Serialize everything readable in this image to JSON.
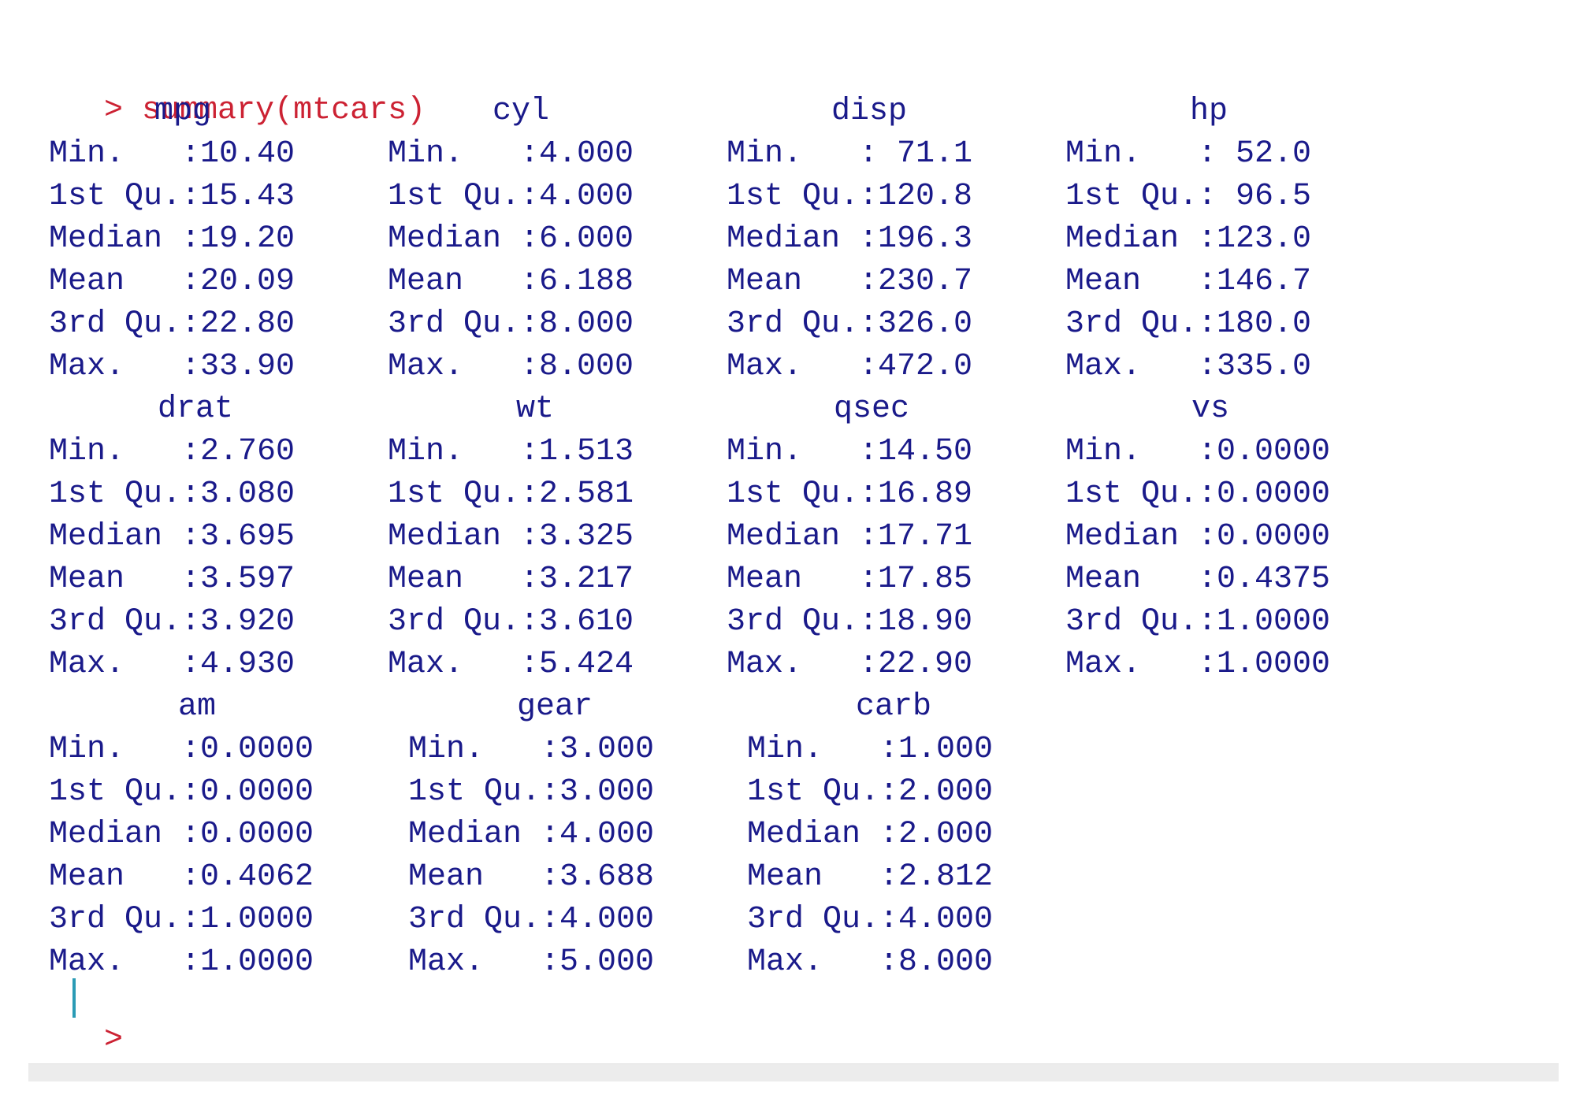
{
  "console": {
    "prompt": ">",
    "command": "summary(mtcars)"
  },
  "groups": [
    {
      "columns": [
        {
          "name": "mpg",
          "rows": [
            "Min.   :10.40",
            "1st Qu.:15.43",
            "Median :19.20",
            "Mean   :20.09",
            "3rd Qu.:22.80",
            "Max.   :33.90"
          ]
        },
        {
          "name": "cyl",
          "rows": [
            "Min.   :4.000",
            "1st Qu.:4.000",
            "Median :6.000",
            "Mean   :6.188",
            "3rd Qu.:8.000",
            "Max.   :8.000"
          ]
        },
        {
          "name": "disp",
          "rows": [
            "Min.   : 71.1",
            "1st Qu.:120.8",
            "Median :196.3",
            "Mean   :230.7",
            "3rd Qu.:326.0",
            "Max.   :472.0"
          ]
        },
        {
          "name": "hp",
          "rows": [
            "Min.   : 52.0",
            "1st Qu.: 96.5",
            "Median :123.0",
            "Mean   :146.7",
            "3rd Qu.:180.0",
            "Max.   :335.0"
          ]
        }
      ]
    },
    {
      "columns": [
        {
          "name": "drat",
          "rows": [
            "Min.   :2.760",
            "1st Qu.:3.080",
            "Median :3.695",
            "Mean   :3.597",
            "3rd Qu.:3.920",
            "Max.   :4.930"
          ]
        },
        {
          "name": "wt",
          "rows": [
            "Min.   :1.513",
            "1st Qu.:2.581",
            "Median :3.325",
            "Mean   :3.217",
            "3rd Qu.:3.610",
            "Max.   :5.424"
          ]
        },
        {
          "name": "qsec",
          "rows": [
            "Min.   :14.50",
            "1st Qu.:16.89",
            "Median :17.71",
            "Mean   :17.85",
            "3rd Qu.:18.90",
            "Max.   :22.90"
          ]
        },
        {
          "name": "vs",
          "rows": [
            "Min.   :0.0000",
            "1st Qu.:0.0000",
            "Median :0.0000",
            "Mean   :0.4375",
            "3rd Qu.:1.0000",
            "Max.   :1.0000"
          ]
        }
      ]
    },
    {
      "columns": [
        {
          "name": "am",
          "rows": [
            "Min.   :0.0000",
            "1st Qu.:0.0000",
            "Median :0.0000",
            "Mean   :0.4062",
            "3rd Qu.:1.0000",
            "Max.   :1.0000"
          ]
        },
        {
          "name": "gear",
          "rows": [
            "Min.   :3.000",
            "1st Qu.:3.000",
            "Median :4.000",
            "Mean   :3.688",
            "3rd Qu.:4.000",
            "Max.   :5.000"
          ]
        },
        {
          "name": "carb",
          "rows": [
            "Min.   :1.000",
            "1st Qu.:2.000",
            "Median :2.000",
            "Mean   :2.812",
            "3rd Qu.:4.000",
            "Max.   :8.000"
          ]
        }
      ]
    }
  ],
  "colors": {
    "output": "#1a1a8a",
    "command": "#cc2233",
    "cursor": "#2a9bb5"
  }
}
